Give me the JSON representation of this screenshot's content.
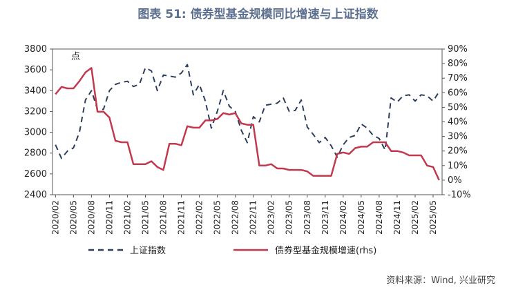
{
  "chart_data": {
    "type": "line",
    "title": "图表 51: 债券型基金规模同比增速与上证指数",
    "annotation": "点",
    "source": "资料来源：Wind, 兴业研究",
    "left_axis": {
      "ylim": [
        2400,
        3800
      ],
      "ticks": [
        "2400",
        "2600",
        "2800",
        "3000",
        "3200",
        "3400",
        "3600",
        "3800"
      ]
    },
    "right_axis": {
      "ylim": [
        -10,
        90
      ],
      "ticks": [
        "-10%",
        "0%",
        "10%",
        "20%",
        "30%",
        "40%",
        "50%",
        "60%",
        "70%",
        "80%",
        "90%"
      ]
    },
    "x_ticks": [
      "2020/02",
      "2020/05",
      "2020/08",
      "2020/11",
      "2021/02",
      "2021/05",
      "2021/08",
      "2021/11",
      "2022/02",
      "2022/05",
      "2022/08",
      "2022/11",
      "2023/02",
      "2023/05",
      "2023/08",
      "2023/11",
      "2024/02",
      "2024/05",
      "2024/08",
      "2024/11",
      "2025/02",
      "2025/05"
    ],
    "x_count": 65,
    "series": [
      {
        "name": "上证指数",
        "axis": "left",
        "style": "dashed",
        "color": "#2c3e5c",
        "values": [
          2880,
          2750,
          2820,
          2850,
          3000,
          3310,
          3400,
          3220,
          3220,
          3400,
          3460,
          3480,
          3490,
          3440,
          3460,
          3620,
          3590,
          3400,
          3550,
          3540,
          3530,
          3570,
          3650,
          3360,
          3460,
          3300,
          3040,
          3200,
          3400,
          3250,
          3200,
          3020,
          2900,
          3150,
          3100,
          3260,
          3270,
          3280,
          3330,
          3200,
          3210,
          3310,
          3050,
          2980,
          2900,
          2950,
          2870,
          2760,
          2880,
          2950,
          2970,
          3080,
          3040,
          2970,
          2940,
          2830,
          3330,
          3290,
          3350,
          3360,
          3300,
          3360,
          3350,
          3300,
          3390
        ]
      },
      {
        "name": "债券型基金规模增速(rhs)",
        "axis": "right",
        "style": "solid",
        "color": "#c0394f",
        "values": [
          59,
          64,
          63,
          63,
          68,
          74,
          77,
          47,
          47,
          43,
          27,
          26,
          26,
          11,
          11,
          11,
          13,
          9,
          7,
          25,
          25,
          24,
          37,
          36,
          36,
          41,
          41,
          42,
          46,
          45,
          46,
          39,
          38,
          38,
          10,
          10,
          11,
          8,
          8,
          7,
          7,
          7,
          6,
          3,
          3,
          3,
          3,
          18,
          19,
          18,
          22,
          23,
          23,
          26,
          26,
          26,
          20,
          20,
          19,
          17,
          17,
          17,
          10,
          9,
          0
        ]
      }
    ]
  }
}
